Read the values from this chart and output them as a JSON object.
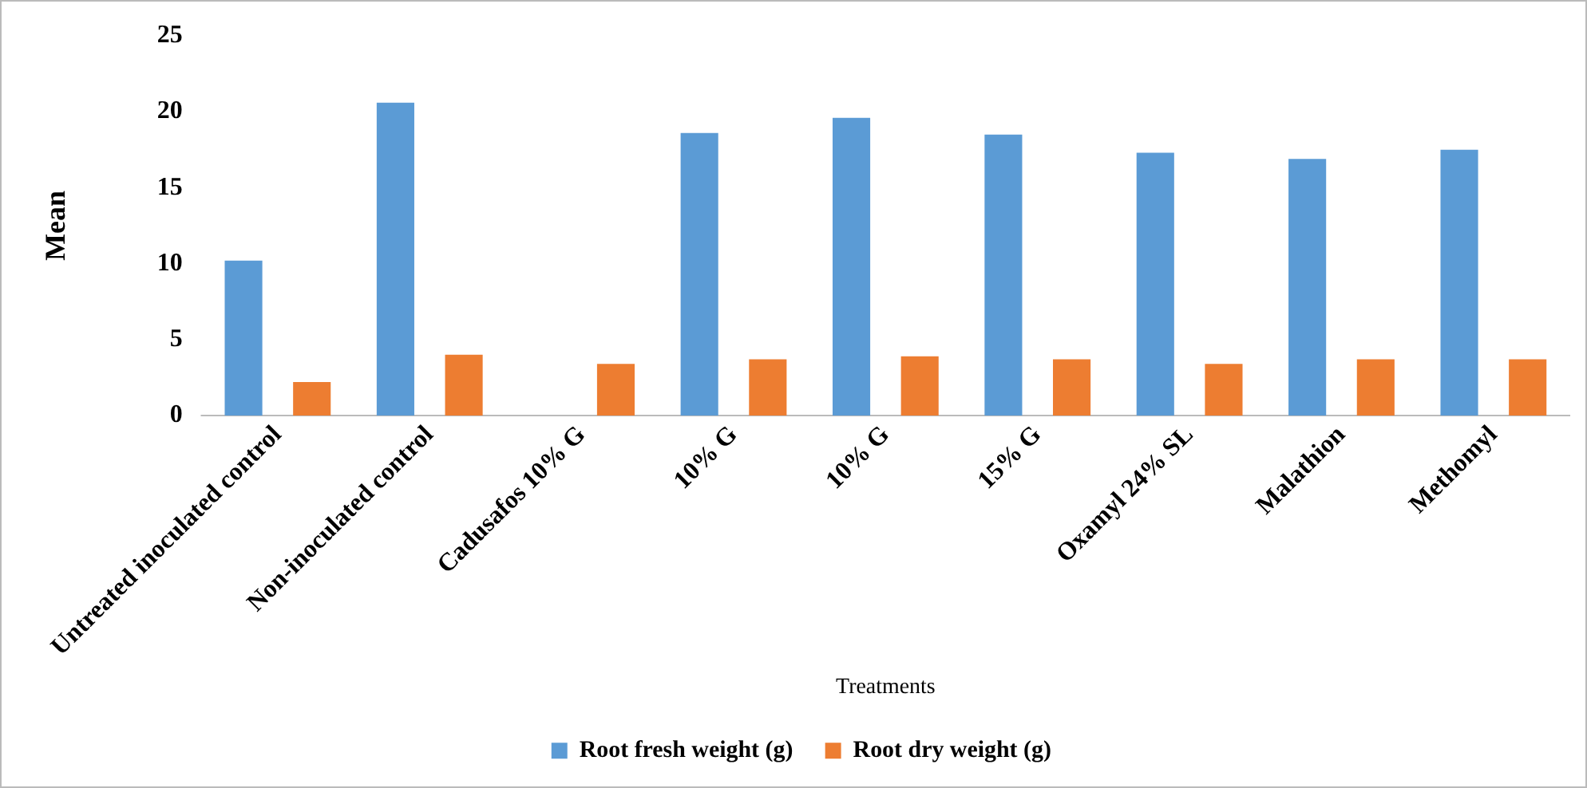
{
  "chart_data": {
    "type": "bar",
    "xlabel": "Treatments",
    "ylabel": "Mean",
    "categories": [
      "Untreated inoculated control",
      "Non-inoculated control",
      "Cadusafos 10% G",
      "10% G",
      "10% G",
      "15% G",
      "Oxamyl 24% SL",
      "Malathion",
      "Methomyl"
    ],
    "series": [
      {
        "name": "Root fresh weight (g)",
        "color": "#5b9bd5",
        "values": [
          10.2,
          20.6,
          null,
          18.6,
          19.6,
          18.5,
          17.3,
          16.9,
          17.5
        ]
      },
      {
        "name": "Root dry weight (g)",
        "color": "#ed7d31",
        "values": [
          2.2,
          4.0,
          3.4,
          3.7,
          3.9,
          3.7,
          3.4,
          3.7,
          3.7
        ]
      }
    ],
    "ylim": [
      0,
      25
    ],
    "yticks": [
      0,
      5,
      10,
      15,
      20,
      25
    ],
    "grid": false,
    "legend": "bottom"
  }
}
